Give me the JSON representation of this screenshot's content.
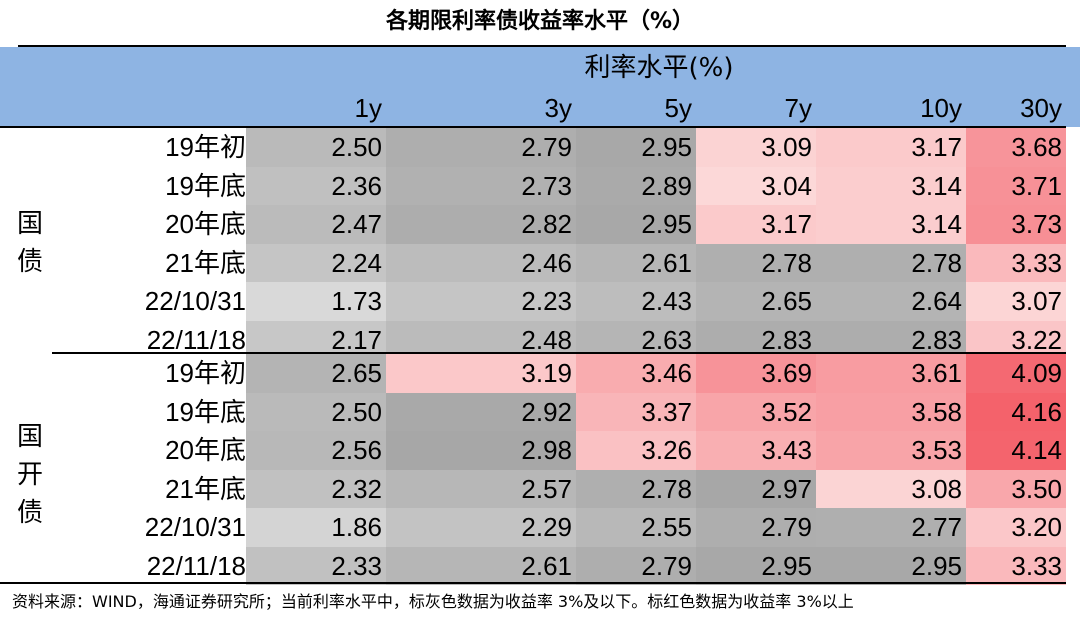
{
  "title": "各期限利率债收益率水平（%）",
  "header": {
    "group_label": "利率水平(%)",
    "columns": [
      "1y",
      "3y",
      "5y",
      "7y",
      "10y",
      "30y"
    ]
  },
  "groups": [
    {
      "label_chars": [
        "国",
        "债"
      ],
      "rows": [
        {
          "label": "19年初",
          "values": [
            "2.50",
            "2.79",
            "2.95",
            "3.09",
            "3.17",
            "3.68"
          ]
        },
        {
          "label": "19年底",
          "values": [
            "2.36",
            "2.73",
            "2.89",
            "3.04",
            "3.14",
            "3.71"
          ]
        },
        {
          "label": "20年底",
          "values": [
            "2.47",
            "2.82",
            "2.95",
            "3.17",
            "3.14",
            "3.73"
          ]
        },
        {
          "label": "21年底",
          "values": [
            "2.24",
            "2.46",
            "2.61",
            "2.78",
            "2.78",
            "3.33"
          ]
        },
        {
          "label": "22/10/31",
          "values": [
            "1.73",
            "2.23",
            "2.43",
            "2.65",
            "2.64",
            "3.07"
          ]
        },
        {
          "label": "22/11/18",
          "values": [
            "2.17",
            "2.48",
            "2.63",
            "2.83",
            "2.83",
            "3.22"
          ]
        }
      ]
    },
    {
      "label_chars": [
        "国",
        "开",
        "债"
      ],
      "rows": [
        {
          "label": "19年初",
          "values": [
            "2.65",
            "3.19",
            "3.46",
            "3.69",
            "3.61",
            "4.09"
          ]
        },
        {
          "label": "19年底",
          "values": [
            "2.50",
            "2.92",
            "3.37",
            "3.52",
            "3.58",
            "4.16"
          ]
        },
        {
          "label": "20年底",
          "values": [
            "2.56",
            "2.98",
            "3.26",
            "3.43",
            "3.53",
            "4.14"
          ]
        },
        {
          "label": "21年底",
          "values": [
            "2.32",
            "2.57",
            "2.78",
            "2.97",
            "3.08",
            "3.50"
          ]
        },
        {
          "label": "22/10/31",
          "values": [
            "1.86",
            "2.29",
            "2.55",
            "2.79",
            "2.77",
            "3.20"
          ]
        },
        {
          "label": "22/11/18",
          "values": [
            "2.33",
            "2.61",
            "2.79",
            "2.95",
            "2.95",
            "3.33"
          ]
        }
      ]
    }
  ],
  "threshold": 3,
  "colors": {
    "header_bg": "#8eb4e3",
    "gray_low": "#d9d9d9",
    "gray_high": "#a6a6a6",
    "red_low": "#fcdcdc",
    "red_high": "#f4626b"
  },
  "footnote": "资料来源：WIND，海通证券研究所；当前利率水平中，标灰色数据为收益率 3%及以下。标红色数据为收益率 3%以上"
}
